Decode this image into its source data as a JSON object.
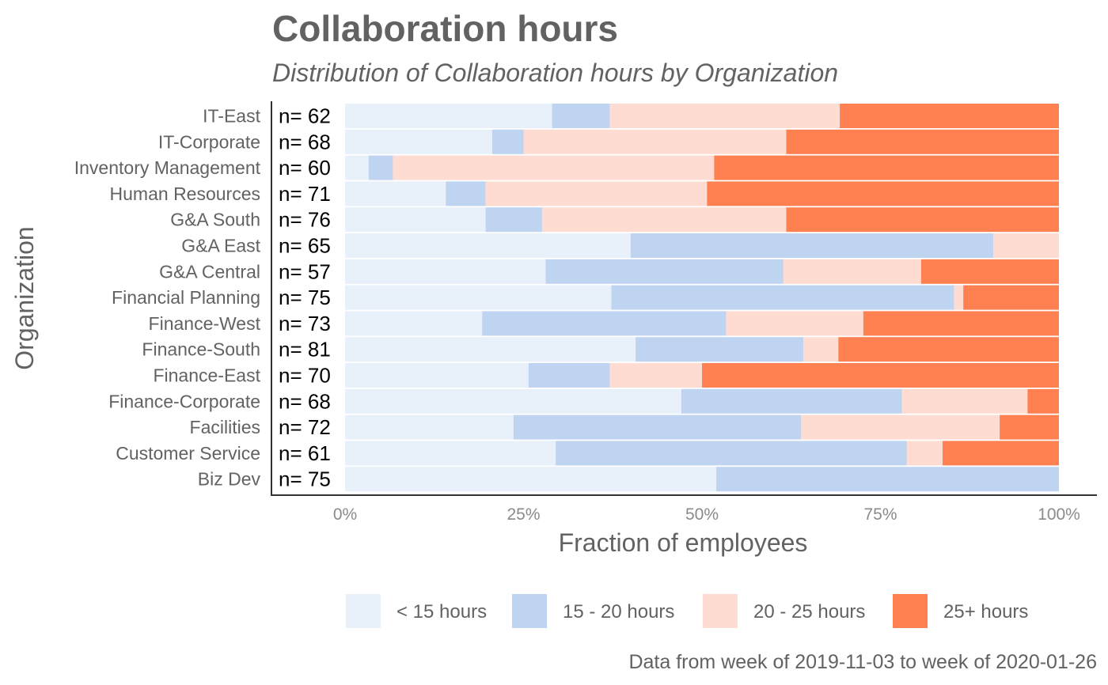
{
  "chart_data": {
    "type": "bar",
    "orientation": "horizontal",
    "stacked": "percent",
    "title": "Collaboration hours",
    "subtitle": "Distribution of Collaboration hours by Organization",
    "xlabel": "Fraction of employees",
    "ylabel": "Organization",
    "xlim": [
      0,
      1
    ],
    "x_ticks": [
      0,
      0.25,
      0.5,
      0.75,
      1
    ],
    "x_tick_labels": [
      "0%",
      "25%",
      "50%",
      "75%",
      "100%"
    ],
    "caption": "Data from week of 2019-11-03 to week of 2020-01-26",
    "legend_position": "bottom",
    "grid": false,
    "categories": [
      "IT-East",
      "IT-Corporate",
      "Inventory Management",
      "Human Resources",
      "G&A South",
      "G&A East",
      "G&A Central",
      "Financial Planning",
      "Finance-West",
      "Finance-South",
      "Finance-East",
      "Finance-Corporate",
      "Facilities",
      "Customer Service",
      "Biz Dev"
    ],
    "n_labels": [
      "n= 62",
      "n= 68",
      "n= 60",
      "n= 71",
      "n= 76",
      "n= 65",
      "n= 57",
      "n= 75",
      "n= 73",
      "n= 81",
      "n= 70",
      "n= 68",
      "n= 72",
      "n= 61",
      "n= 75"
    ],
    "series": [
      {
        "name": "< 15 hours",
        "color": "#E8F0FA",
        "values": [
          0.29,
          0.206,
          0.033,
          0.141,
          0.197,
          0.4,
          0.281,
          0.373,
          0.192,
          0.407,
          0.257,
          0.471,
          0.236,
          0.295,
          0.52
        ]
      },
      {
        "name": "15 - 20 hours",
        "color": "#BFD4F1",
        "values": [
          0.081,
          0.044,
          0.034,
          0.056,
          0.079,
          0.508,
          0.333,
          0.48,
          0.342,
          0.235,
          0.114,
          0.309,
          0.403,
          0.492,
          0.48
        ]
      },
      {
        "name": "20 - 25 hours",
        "color": "#FEDCD2",
        "values": [
          0.322,
          0.368,
          0.45,
          0.31,
          0.342,
          0.092,
          0.193,
          0.013,
          0.192,
          0.049,
          0.129,
          0.176,
          0.278,
          0.05,
          0
        ]
      },
      {
        "name": "25+ hours",
        "color": "#FF8151",
        "values": [
          0.307,
          0.382,
          0.483,
          0.493,
          0.382,
          0,
          0.193,
          0.134,
          0.274,
          0.309,
          0.5,
          0.044,
          0.083,
          0.163,
          0
        ]
      }
    ]
  }
}
